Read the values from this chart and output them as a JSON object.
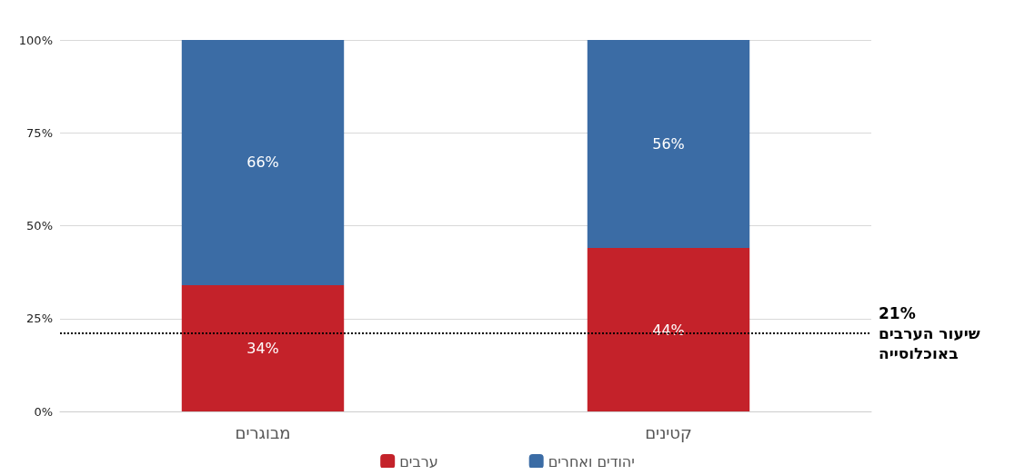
{
  "chart_data": {
    "type": "bar",
    "stacked": true,
    "categories": [
      "מבוגרים",
      "קטינים"
    ],
    "series": [
      {
        "name": "ערבים",
        "color": "#c4222a",
        "values": [
          34,
          44
        ],
        "value_labels": [
          "34%",
          "44%"
        ]
      },
      {
        "name": "יהודים ואחרים",
        "color": "#3b6ca5",
        "values": [
          66,
          56
        ],
        "value_labels": [
          "66%",
          "56%"
        ]
      }
    ],
    "ylim": [
      0,
      100
    ],
    "yticks": [
      {
        "value": 0,
        "label": "0%"
      },
      {
        "value": 25,
        "label": "25%"
      },
      {
        "value": 50,
        "label": "50%"
      },
      {
        "value": 75,
        "label": "75%"
      },
      {
        "value": 100,
        "label": "100%"
      }
    ],
    "grid": "y",
    "legend": "bottom",
    "ref_lines": [
      {
        "axis": "y",
        "value": 21,
        "label": "21%\nשיעור הערבים\nבאוכלוסייה",
        "color": "#000000",
        "line_style": "dotted"
      }
    ]
  }
}
